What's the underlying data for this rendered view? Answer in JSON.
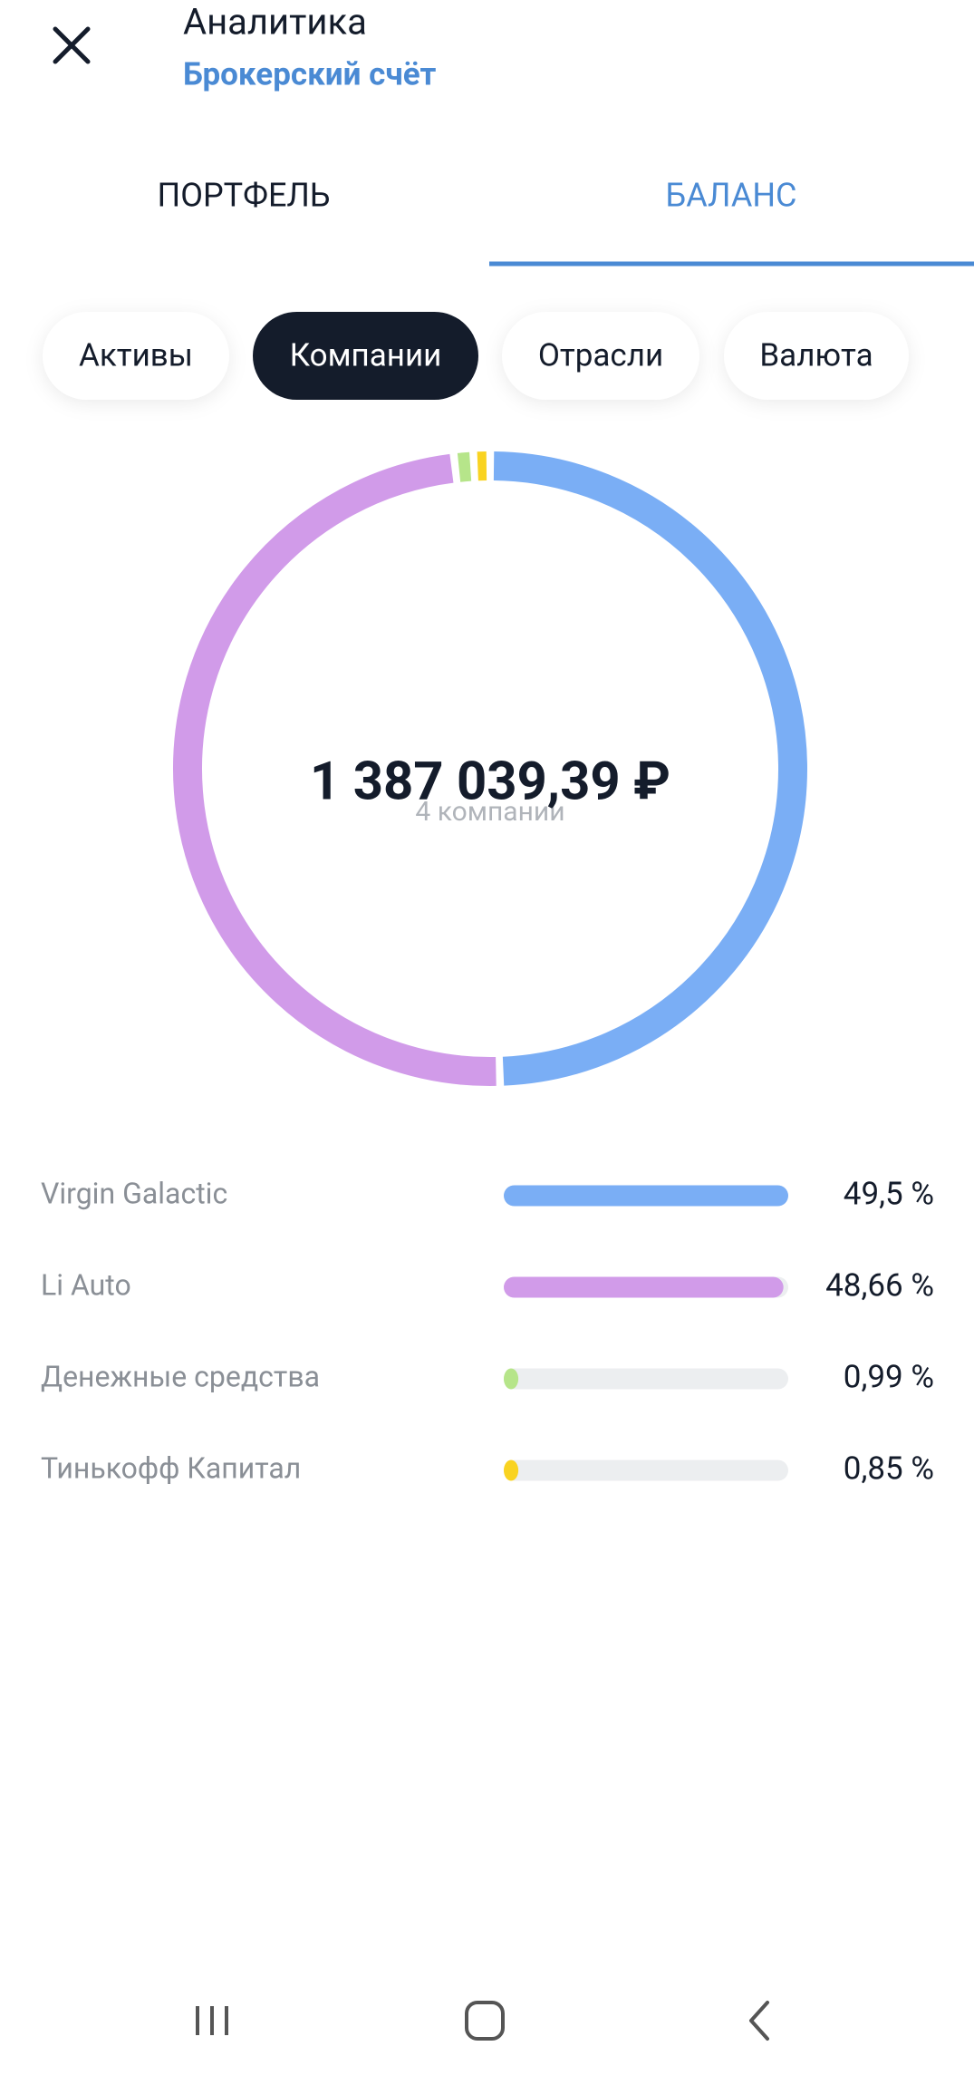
{
  "header": {
    "title": "Аналитика",
    "subtitle": "Брокерский счёт"
  },
  "tabs": [
    "ПОРТФЕЛЬ",
    "БАЛАНС"
  ],
  "active_tab": 1,
  "chips": [
    "Активы",
    "Компании",
    "Отрасли",
    "Валюта"
  ],
  "active_chip": 1,
  "chart_data": {
    "type": "donut",
    "center_label": "1 387 039,39 ₽",
    "center_sublabel": "4 компании",
    "categories": [
      "Virgin Galactic",
      "Li Auto",
      "Денежные средства",
      "Тинькофф Капитал"
    ],
    "values": [
      49.5,
      48.66,
      0.99,
      0.85
    ],
    "value_labels": [
      "49,5 %",
      "48,66 %",
      "0,99 %",
      "0,85 %"
    ],
    "colors": [
      "#7aaef5",
      "#d19be9",
      "#b6e58a",
      "#f9d321"
    ],
    "track_color": "#eceef0"
  }
}
